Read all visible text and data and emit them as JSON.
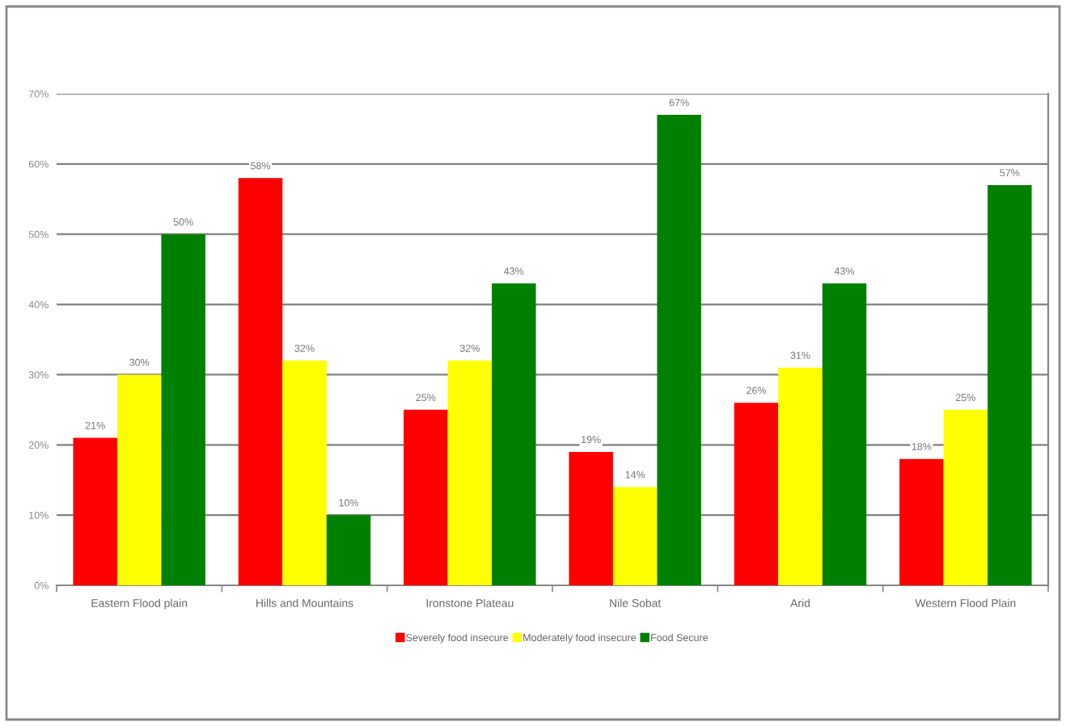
{
  "chart_data": {
    "type": "bar",
    "categories": [
      "Eastern Flood plain",
      "Hills and Mountains",
      "Ironstone Plateau",
      "Nile Sobat",
      "Arid",
      "Western Flood Plain"
    ],
    "series": [
      {
        "name": "Severely food insecure",
        "color": "#ff0000",
        "values": [
          21,
          58,
          25,
          19,
          26,
          18
        ],
        "value_labels": [
          "21%",
          "58%",
          "25%",
          "19%",
          "26%",
          "18%"
        ]
      },
      {
        "name": "Moderately food insecure",
        "color": "#ffff00",
        "values": [
          30,
          32,
          32,
          14,
          31,
          25
        ],
        "value_labels": [
          "30%",
          "32%",
          "32%",
          "14%",
          "31%",
          "25%"
        ]
      },
      {
        "name": "Food Secure",
        "color": "#008000",
        "values": [
          50,
          10,
          43,
          67,
          43,
          57
        ],
        "value_labels": [
          "50%",
          "10%",
          "43%",
          "67%",
          "43%",
          "57%"
        ]
      }
    ],
    "ylim": [
      0,
      70
    ],
    "yticks": [
      {
        "value": 0,
        "label": "0%"
      },
      {
        "value": 10,
        "label": "10%"
      },
      {
        "value": 20,
        "label": "20%"
      },
      {
        "value": 30,
        "label": "30%"
      },
      {
        "value": 40,
        "label": "40%"
      },
      {
        "value": 50,
        "label": "50%"
      },
      {
        "value": 60,
        "label": "60%"
      },
      {
        "value": 70,
        "label": "70%"
      }
    ],
    "grid": "y",
    "legend": "bottom"
  }
}
